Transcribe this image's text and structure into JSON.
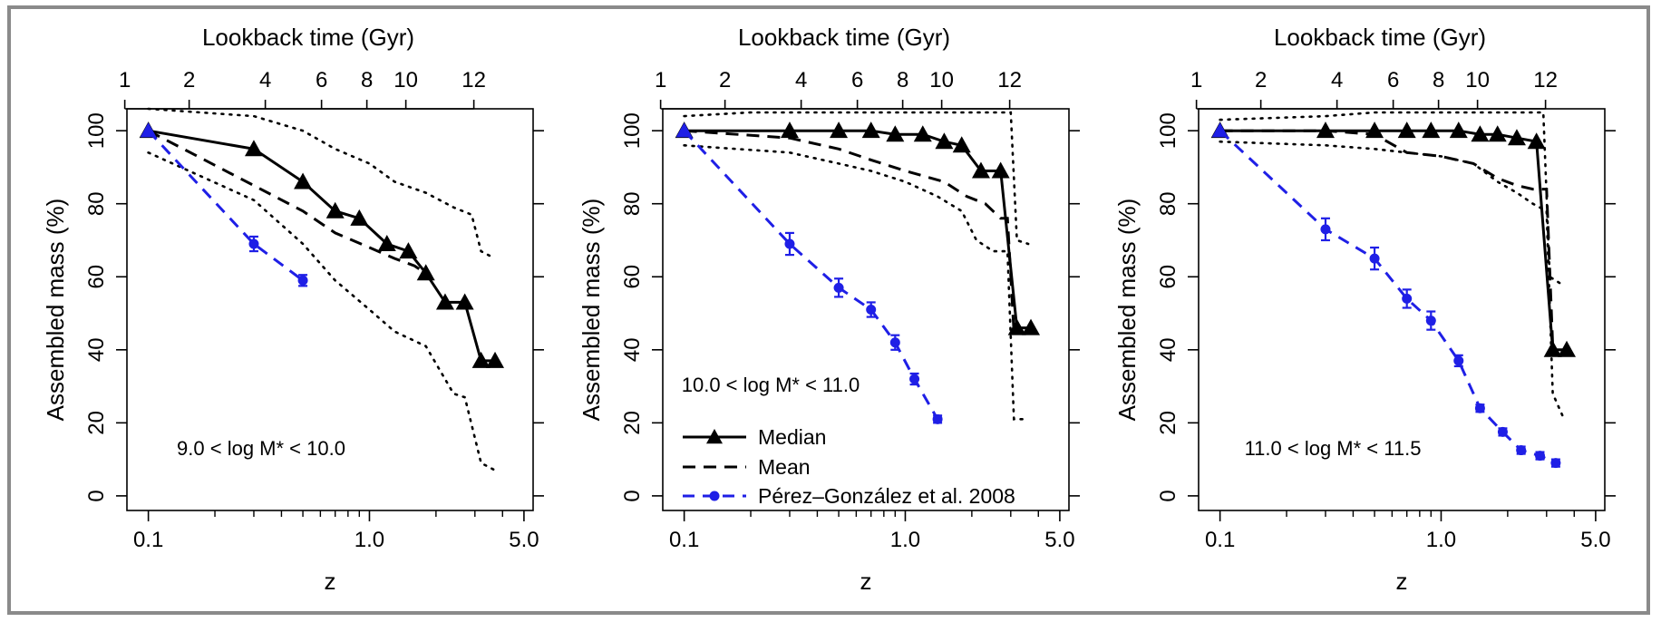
{
  "chart_data": [
    {
      "type": "line",
      "xscale": "log",
      "xlabel": "z",
      "ylabel": "Assembled mass (%)",
      "top_axis_label": "Lookback time (Gyr)",
      "top_axis_ticks": [
        "1",
        "2",
        "4",
        "6",
        "8",
        "10",
        "12"
      ],
      "xticks": [
        "0.1",
        "1.0",
        "5.0"
      ],
      "yticks": [
        "0",
        "20",
        "40",
        "60",
        "80",
        "100"
      ],
      "xlim": [
        0.08,
        5.5
      ],
      "ylim": [
        -4,
        106
      ],
      "annotation": "9.0 < log M* < 10.0",
      "series": [
        {
          "name": "Median",
          "style": "solid-triangle",
          "color": "#000000",
          "x": [
            0.1,
            0.3,
            0.5,
            0.7,
            0.9,
            1.2,
            1.5,
            1.8,
            2.2,
            2.7,
            3.2,
            3.7
          ],
          "y": [
            100,
            95,
            86,
            78,
            76,
            69,
            67,
            61,
            53,
            53,
            37,
            37
          ]
        },
        {
          "name": "Mean",
          "style": "dashed",
          "color": "#000000",
          "x": [
            0.1,
            0.3,
            0.5,
            0.7,
            1.0,
            1.3,
            1.6,
            1.9
          ],
          "y": [
            100,
            85,
            78,
            72,
            68,
            65,
            63,
            60
          ]
        },
        {
          "name": "Upper envelope",
          "style": "dotted",
          "color": "#000000",
          "x": [
            0.1,
            0.3,
            0.5,
            0.7,
            1.0,
            1.3,
            1.8,
            2.4,
            2.9,
            3.2,
            3.7
          ],
          "y": [
            106,
            104,
            100,
            95,
            91,
            86,
            83,
            79,
            77,
            67,
            65
          ]
        },
        {
          "name": "Lower envelope",
          "style": "dotted",
          "color": "#000000",
          "x": [
            0.1,
            0.3,
            0.5,
            0.7,
            1.0,
            1.3,
            1.8,
            2.4,
            2.7,
            3.2,
            3.7
          ],
          "y": [
            94,
            81,
            69,
            59,
            51,
            45,
            41,
            28,
            27,
            9,
            7
          ]
        },
        {
          "name": "Pérez–González et al. 2008",
          "style": "dashed-errorbar",
          "color": "#1f1fe6",
          "x": [
            0.1,
            0.3,
            0.5
          ],
          "y": [
            100,
            69,
            59
          ],
          "err": [
            0,
            2,
            1.5
          ]
        }
      ]
    },
    {
      "type": "line",
      "xscale": "log",
      "xlabel": "z",
      "ylabel": "Assembled mass (%)",
      "top_axis_label": "Lookback time (Gyr)",
      "top_axis_ticks": [
        "1",
        "2",
        "4",
        "6",
        "8",
        "10",
        "12"
      ],
      "xticks": [
        "0.1",
        "1.0",
        "5.0"
      ],
      "yticks": [
        "0",
        "20",
        "40",
        "60",
        "80",
        "100"
      ],
      "xlim": [
        0.08,
        5.5
      ],
      "ylim": [
        -4,
        106
      ],
      "annotation": "10.0 < log M* < 11.0",
      "legend": [
        "Median",
        "Mean",
        "Pérez–González et al. 2008"
      ],
      "series": [
        {
          "name": "Median",
          "style": "solid-triangle",
          "color": "#000000",
          "x": [
            0.1,
            0.3,
            0.5,
            0.7,
            0.9,
            1.2,
            1.5,
            1.8,
            2.2,
            2.7,
            3.2,
            3.7
          ],
          "y": [
            100,
            100,
            100,
            100,
            99,
            99,
            97,
            96,
            89,
            89,
            46,
            46
          ]
        },
        {
          "name": "Mean",
          "style": "dashed",
          "color": "#000000",
          "x": [
            0.1,
            0.3,
            0.5,
            0.7,
            1.0,
            1.5,
            1.9,
            2.3,
            2.7,
            2.9,
            3.1
          ],
          "y": [
            100,
            98,
            95,
            92,
            89,
            86,
            82,
            80,
            76,
            76,
            45
          ]
        },
        {
          "name": "Upper envelope",
          "style": "dotted",
          "color": "#000000",
          "x": [
            0.1,
            0.2,
            0.5,
            1.0,
            2.0,
            2.6,
            2.9,
            3.0,
            3.2,
            3.6
          ],
          "y": [
            104,
            105,
            105,
            105,
            105,
            105,
            105,
            105,
            70,
            69
          ]
        },
        {
          "name": "Lower envelope",
          "style": "dotted",
          "color": "#000000",
          "x": [
            0.1,
            0.3,
            0.5,
            0.7,
            1.0,
            1.4,
            1.8,
            2.1,
            2.5,
            2.9,
            3.1,
            3.6
          ],
          "y": [
            96,
            94,
            91,
            89,
            86,
            82,
            78,
            70,
            67,
            67,
            21,
            21
          ]
        },
        {
          "name": "Pérez–González et al. 2008",
          "style": "dashed-errorbar",
          "color": "#1f1fe6",
          "x": [
            0.1,
            0.3,
            0.5,
            0.7,
            0.9,
            1.1,
            1.4
          ],
          "y": [
            100,
            69,
            57,
            51,
            42,
            32,
            21
          ],
          "err": [
            0,
            3,
            2.5,
            2,
            2,
            1.5,
            1
          ]
        }
      ]
    },
    {
      "type": "line",
      "xscale": "log",
      "xlabel": "z",
      "ylabel": "Assembled mass (%)",
      "top_axis_label": "Lookback time (Gyr)",
      "top_axis_ticks": [
        "1",
        "2",
        "4",
        "6",
        "8",
        "10",
        "12"
      ],
      "xticks": [
        "0.1",
        "1.0",
        "5.0"
      ],
      "yticks": [
        "0",
        "20",
        "40",
        "60",
        "80",
        "100"
      ],
      "xlim": [
        0.08,
        5.5
      ],
      "ylim": [
        -4,
        106
      ],
      "annotation": "11.0 < log M* < 11.5",
      "series": [
        {
          "name": "Median",
          "style": "solid-triangle",
          "color": "#000000",
          "x": [
            0.1,
            0.3,
            0.5,
            0.7,
            0.9,
            1.2,
            1.5,
            1.8,
            2.2,
            2.7,
            3.2,
            3.7
          ],
          "y": [
            100,
            100,
            100,
            100,
            100,
            100,
            99,
            99,
            98,
            97,
            40,
            40
          ]
        },
        {
          "name": "Mean",
          "style": "dashed",
          "color": "#000000",
          "x": [
            0.1,
            0.3,
            0.5,
            0.7,
            1.0,
            1.4,
            1.8,
            2.2,
            2.6,
            3.0,
            3.2
          ],
          "y": [
            100,
            100,
            99,
            94,
            93,
            91,
            87,
            85,
            84,
            84,
            41
          ]
        },
        {
          "name": "Upper envelope",
          "style": "dotted",
          "color": "#000000",
          "x": [
            0.1,
            0.3,
            0.5,
            1.0,
            2.0,
            2.6,
            2.9,
            3.1,
            3.5
          ],
          "y": [
            103,
            104,
            105,
            105,
            105,
            105,
            105,
            60,
            58
          ]
        },
        {
          "name": "Lower envelope",
          "style": "dotted",
          "color": "#000000",
          "x": [
            0.1,
            0.3,
            0.5,
            0.7,
            1.0,
            1.4,
            1.8,
            2.2,
            2.6,
            3.0,
            3.2,
            3.6
          ],
          "y": [
            97,
            96,
            95,
            94,
            93,
            91,
            86,
            83,
            80,
            78,
            28,
            21
          ]
        },
        {
          "name": "Pérez–González et al. 2008",
          "style": "dashed-errorbar",
          "color": "#1f1fe6",
          "x": [
            0.1,
            0.3,
            0.5,
            0.7,
            0.9,
            1.2,
            1.5,
            1.9,
            2.3,
            2.8,
            3.3
          ],
          "y": [
            100,
            73,
            65,
            54,
            48,
            37,
            24,
            17.5,
            12.5,
            11,
            9
          ],
          "err": [
            0,
            3,
            3,
            2.5,
            2.5,
            1.5,
            1,
            1,
            1,
            1,
            1
          ]
        }
      ]
    }
  ]
}
